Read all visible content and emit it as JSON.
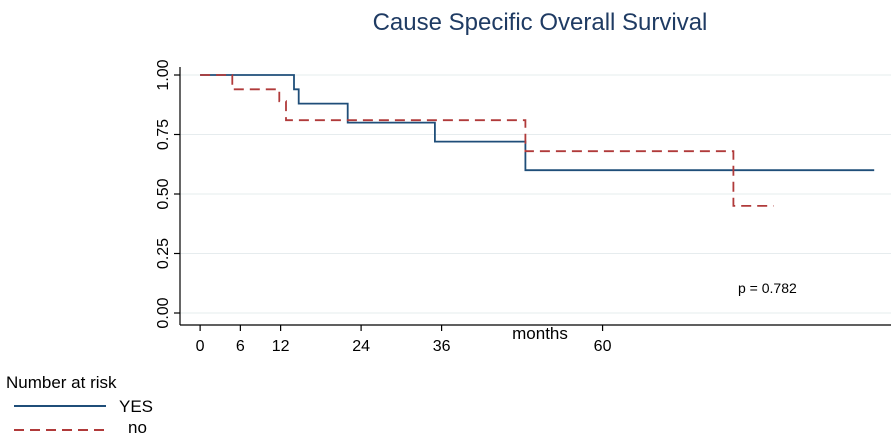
{
  "chart_data": {
    "type": "line",
    "title": "Cause Specific Overall Survival",
    "xlabel": "months",
    "ylabel": "",
    "xlim": [
      -3,
      103
    ],
    "ylim": [
      0,
      1
    ],
    "x_ticks": [
      0,
      6,
      12,
      24,
      36,
      60
    ],
    "x_tick_labels": [
      "0",
      "6",
      "12",
      "24",
      "36",
      "60"
    ],
    "y_ticks": [
      0,
      0.25,
      0.5,
      0.75,
      1
    ],
    "y_tick_labels": [
      "0.00",
      "0.25",
      "0.50",
      "0.75",
      "1.00"
    ],
    "grid": true,
    "annotation": "p = 0.782",
    "series": [
      {
        "name": "YES",
        "color": "#1f4e79",
        "style": "solid",
        "x": [
          0,
          14,
          14,
          14.7,
          14.7,
          22,
          22,
          35,
          35,
          48.5,
          48.5,
          100.5
        ],
        "y": [
          1,
          1,
          0.94,
          0.94,
          0.88,
          0.88,
          0.8,
          0.8,
          0.72,
          0.72,
          0.6,
          0.6
        ]
      },
      {
        "name": "no",
        "color": "#b03a3a",
        "style": "dashed",
        "x": [
          0,
          4.8,
          4.8,
          11.8,
          11.8,
          12.8,
          12.8,
          48.5,
          48.5,
          79.5,
          79.5,
          85.5
        ],
        "y": [
          1,
          1,
          0.94,
          0.94,
          0.89,
          0.89,
          0.81,
          0.81,
          0.68,
          0.68,
          0.45,
          0.45
        ]
      }
    ],
    "legend": {
      "title": "Number at risk",
      "placement": "bottom-left",
      "entries": [
        "YES",
        "no"
      ]
    }
  }
}
